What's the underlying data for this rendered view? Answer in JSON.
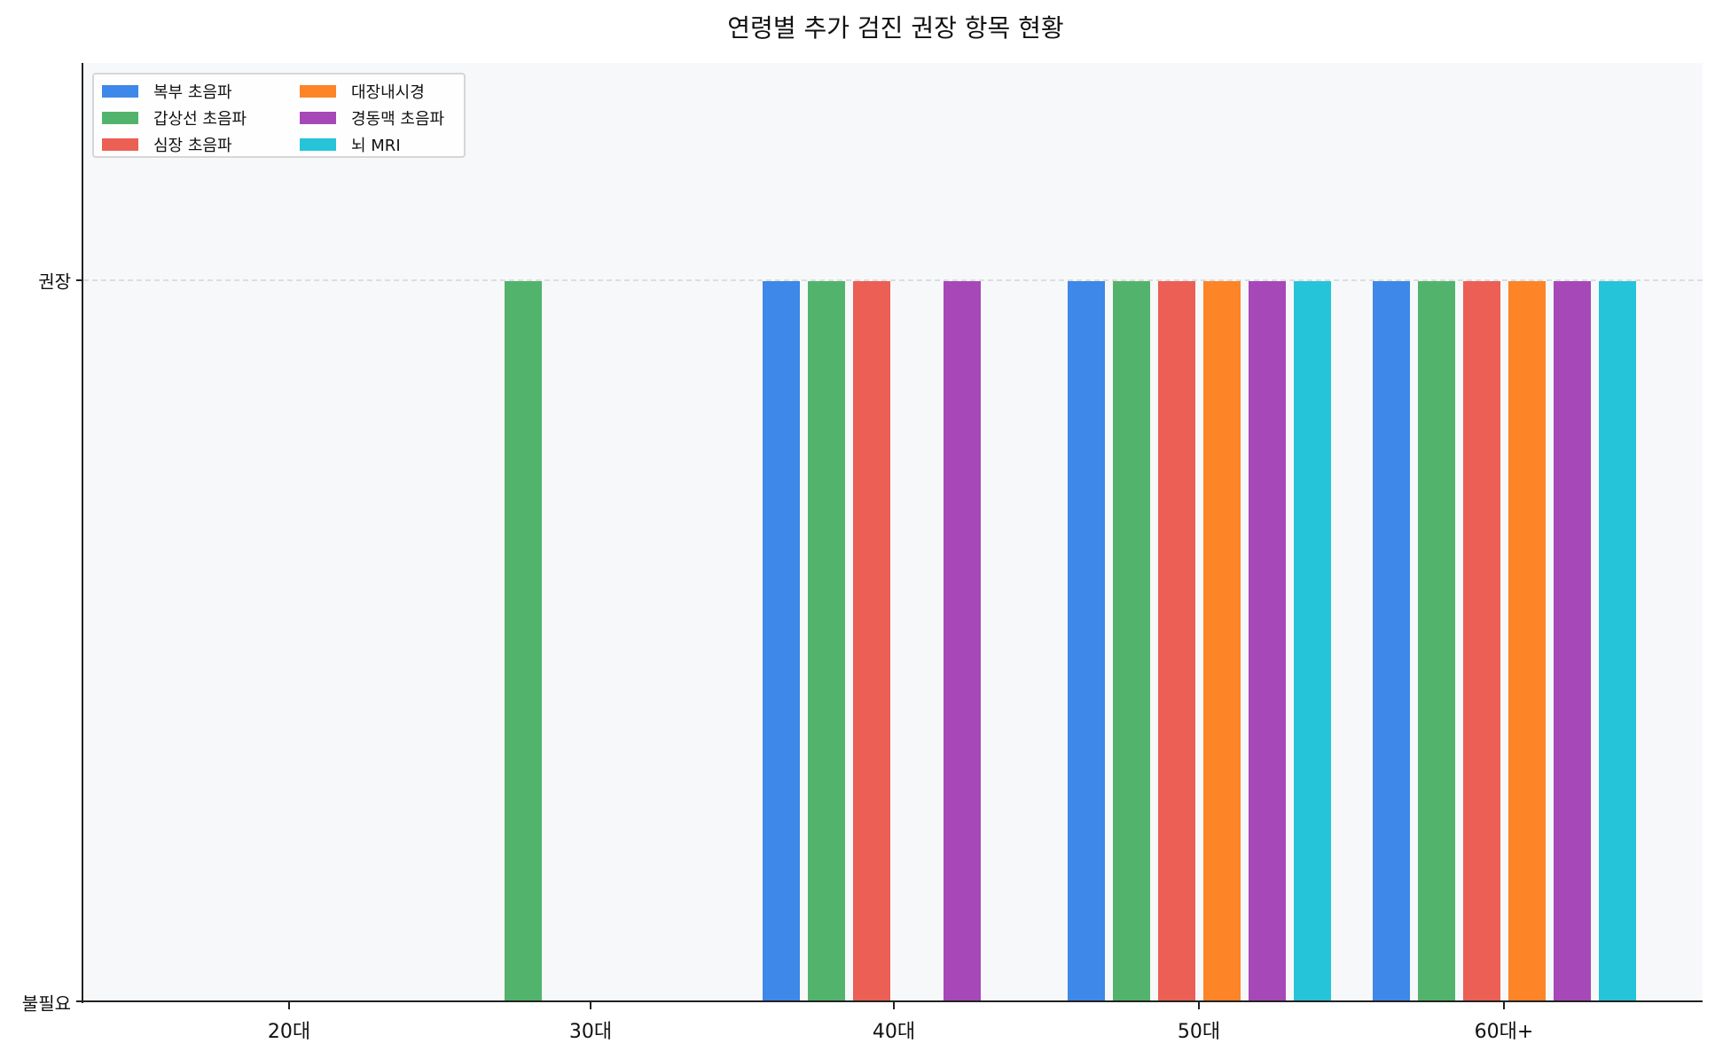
{
  "chart_data": {
    "type": "bar",
    "title": "연령별 추가 검진 권장 항목 현황",
    "xlabel": "",
    "ylabel": "",
    "categories": [
      "20대",
      "30대",
      "40대",
      "50대",
      "60대+"
    ],
    "yticks": [
      {
        "value": 0,
        "label": "불필요"
      },
      {
        "value": 1,
        "label": "권장"
      }
    ],
    "ylim": [
      0,
      1.3
    ],
    "grid": "dashed line at 권장 level",
    "legend_position": "upper left (2 columns)",
    "series": [
      {
        "name": "복부 초음파",
        "color": "#3d88e8",
        "values": [
          0,
          0,
          1,
          1,
          1
        ]
      },
      {
        "name": "갑상선 초음파",
        "color": "#52b46c",
        "values": [
          0,
          1,
          1,
          1,
          1
        ]
      },
      {
        "name": "심장 초음파",
        "color": "#eb5f54",
        "values": [
          0,
          0,
          1,
          1,
          1
        ]
      },
      {
        "name": "대장내시경",
        "color": "#fd8427",
        "values": [
          0,
          0,
          0,
          1,
          1
        ]
      },
      {
        "name": "경동맥 초음파",
        "color": "#a748b8",
        "values": [
          0,
          0,
          1,
          1,
          1
        ]
      },
      {
        "name": "뇌 MRI",
        "color": "#26c4d8",
        "values": [
          0,
          0,
          0,
          1,
          1
        ]
      }
    ]
  },
  "colors": {
    "plot_background": "#f7f8fa",
    "axis": "#222222",
    "grid": "#dcdde0"
  }
}
